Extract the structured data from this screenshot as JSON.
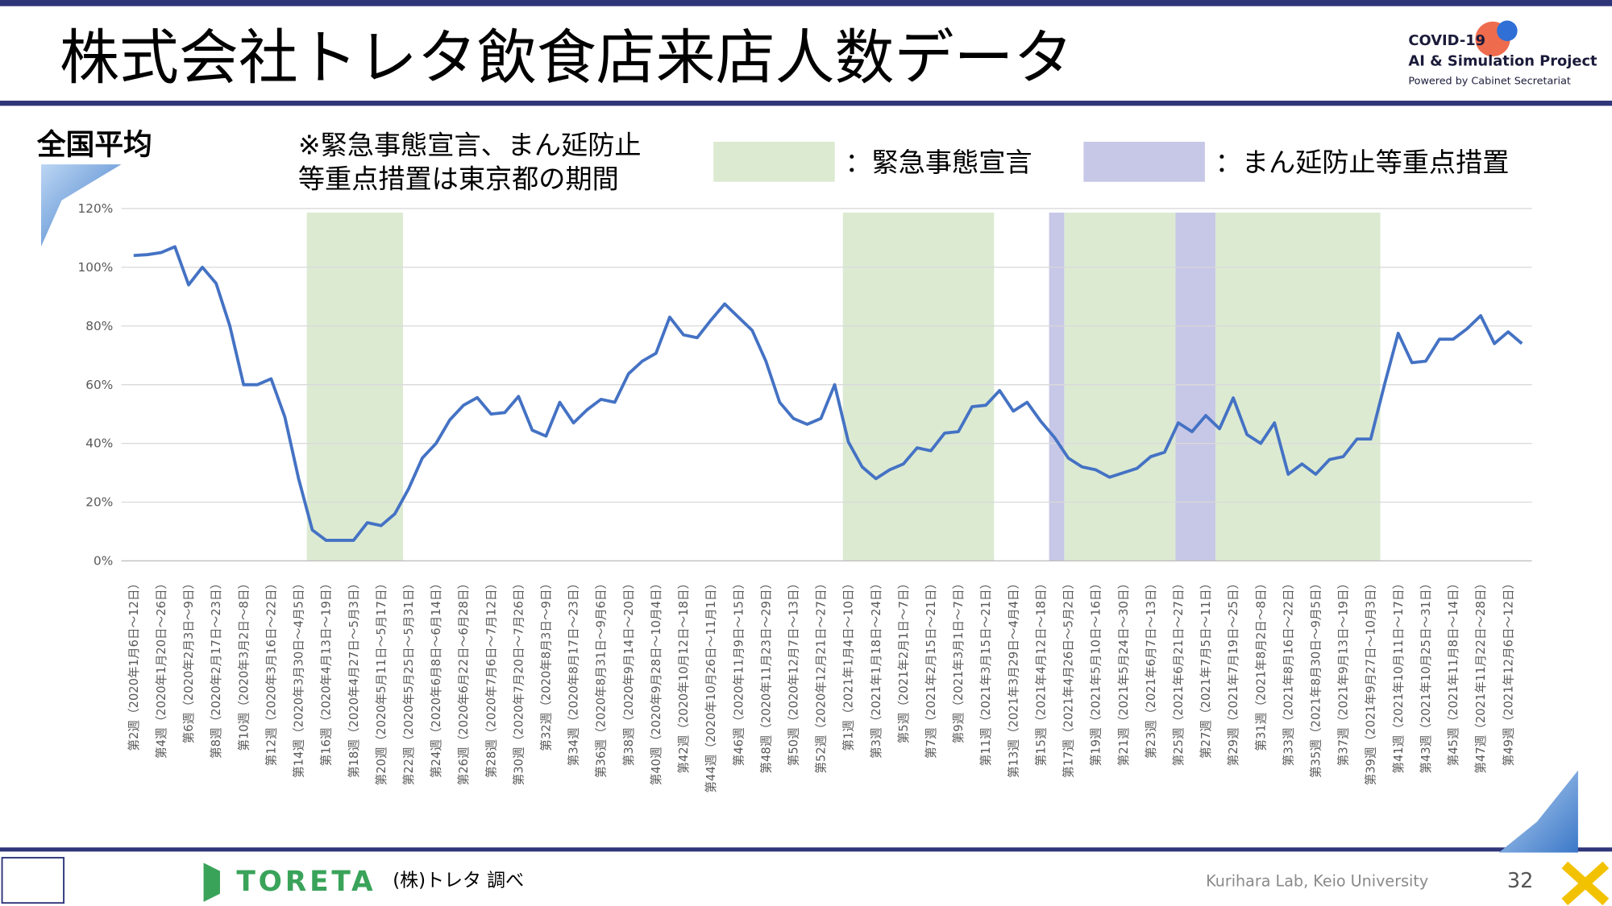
{
  "header": {
    "title": "株式会社トレタ飲食店来店人数データ",
    "logo": [
      "COVID-19",
      "AI & Simulation Project",
      "Powered by Cabinet Secretariat"
    ]
  },
  "footer": {
    "brand": "TORETA",
    "source": "(株)トレタ 調べ",
    "lab": "Kurihara Lab, Keio University",
    "page": "32"
  },
  "chart_data": {
    "type": "line",
    "note": [
      "※緊急事態宣言、まん延防止",
      "等重点措置は東京都の期間"
    ],
    "categories": [
      "第2週（2020年1月6日～12日）",
      null,
      "第4週（2020年1月20日～26日）",
      null,
      "第6週（2020年2月3日～9日）",
      null,
      "第8週（2020年2月17日～23日）",
      null,
      "第10週（2020年3月2日～8日）",
      null,
      "第12週（2020年3月16日～22日）",
      null,
      "第14週（2020年3月30日～4月5日）",
      null,
      "第16週（2020年4月13日～19日）",
      null,
      "第18週（2020年4月27日～5月3日）",
      null,
      "第20週（2020年5月11日～5月17日）",
      null,
      "第22週（2020年5月25日～5月31日）",
      null,
      "第24週（2020年6月8日～6月14日）",
      null,
      "第26週（2020年6月22日～6月28日）",
      null,
      "第28週（2020年7月6日～7月12日）",
      null,
      "第30週（2020年7月20日～7月26日）",
      null,
      "第32週（2020年8月3日～9日）",
      null,
      "第34週（2020年8月17日～23日）",
      null,
      "第36週（2020年8月31日～9月6日）",
      null,
      "第38週（2020年9月14日～20日）",
      null,
      "第40週（2020年9月28日～10月4日）",
      null,
      "第42週（2020年10月12日～18日）",
      null,
      "第44週（2020年10月26日～11月1日）",
      null,
      "第46週（2020年11月9日～15日）",
      null,
      "第48週（2020年11月23日～29日）",
      null,
      "第50週（2020年12月7日～13日）",
      null,
      "第52週（2020年12月21日～27日）",
      null,
      "第1週（2021年1月4日～10日）",
      null,
      "第3週（2021年1月18日～24日）",
      null,
      "第5週（2021年2月1日～7日）",
      null,
      "第7週（2021年2月15日～21日）",
      null,
      "第9週（2021年3月1日～7日）",
      null,
      "第11週（2021年3月15日～21日）",
      null,
      "第13週（2021年3月29日～4月4日）",
      null,
      "第15週（2021年4月12日～18日）",
      null,
      "第17週（2021年4月26日～5月2日）",
      null,
      "第19週（2021年5月10日～16日）",
      null,
      "第21週（2021年5月24日～30日）",
      null,
      "第23週（2021年6月7日～13日）",
      null,
      "第25週（2021年6月21日～27日）",
      null,
      "第27週（2021年7月5日～11日）",
      null,
      "第29週（2021年7月19日～25日）",
      null,
      "第31週（2021年8月2日～8日）",
      null,
      "第33週（2021年8月16日～22日）",
      null,
      "第35週（2021年8月30日～9月5日）",
      null,
      "第37週（2021年9月13日～19日）",
      null,
      "第39週（2021年9月27日～10月3日）",
      null,
      "第41週（2021年10月11日～17日）",
      null,
      "第43週（2021年10月25日～31日）",
      null,
      "第45週（2021年11月8日～14日）",
      null,
      "第47週（2021年11月22日～28日）",
      null,
      "第49週（2021年12月6日～12日）",
      null
    ],
    "series": [
      {
        "name": "全国平均",
        "color": "#4472c4",
        "values": [
          104,
          104.3,
          105,
          107,
          94,
          100,
          94.5,
          80,
          60,
          60,
          62,
          49,
          28,
          10.5,
          7,
          7,
          7,
          13,
          12,
          16,
          24.5,
          35,
          40,
          48,
          53,
          55.6,
          50,
          50.5,
          56,
          44.5,
          42.5,
          54,
          47,
          51.5,
          55,
          54,
          63.7,
          68,
          70.7,
          83,
          77,
          76,
          82,
          87.5,
          83,
          78.5,
          68,
          54,
          48.5,
          46.5,
          48.5,
          60,
          40.5,
          32,
          28,
          31,
          33,
          38.5,
          37.5,
          43.5,
          44,
          52.5,
          53,
          58,
          51,
          54,
          47.5,
          42,
          35,
          32,
          31,
          28.5,
          30,
          31.5,
          35.5,
          37,
          47,
          44,
          49.5,
          45,
          55.5,
          43,
          40,
          47,
          29.5,
          33,
          29.5,
          34.5,
          35.5,
          41.5,
          41.5,
          60,
          77.5,
          67.5,
          68,
          75.5,
          75.5,
          79,
          83.5,
          74,
          78,
          74
        ]
      }
    ],
    "bands": [
      {
        "name": "：緊急事態宣言",
        "color": "#dcead2",
        "spans": [
          [
            12.6,
            19.6
          ],
          [
            51.6,
            62.6
          ],
          [
            67.7,
            75.8
          ],
          [
            78.7,
            90.7
          ]
        ]
      },
      {
        "name": "：まん延防止等重点措置",
        "color": "#c7c7e7",
        "spans": [
          [
            66.6,
            67.7
          ],
          [
            75.8,
            78.7
          ]
        ]
      }
    ],
    "ylim": [
      0,
      120
    ],
    "yticks": [
      {
        "value": 0,
        "label": "0%"
      },
      {
        "value": 20,
        "label": "20%"
      },
      {
        "value": 40,
        "label": "40%"
      },
      {
        "value": 60,
        "label": "60%"
      },
      {
        "value": 80,
        "label": "80%"
      },
      {
        "value": 100,
        "label": "100%"
      },
      {
        "value": 120,
        "label": "120%"
      }
    ],
    "grid": true
  }
}
